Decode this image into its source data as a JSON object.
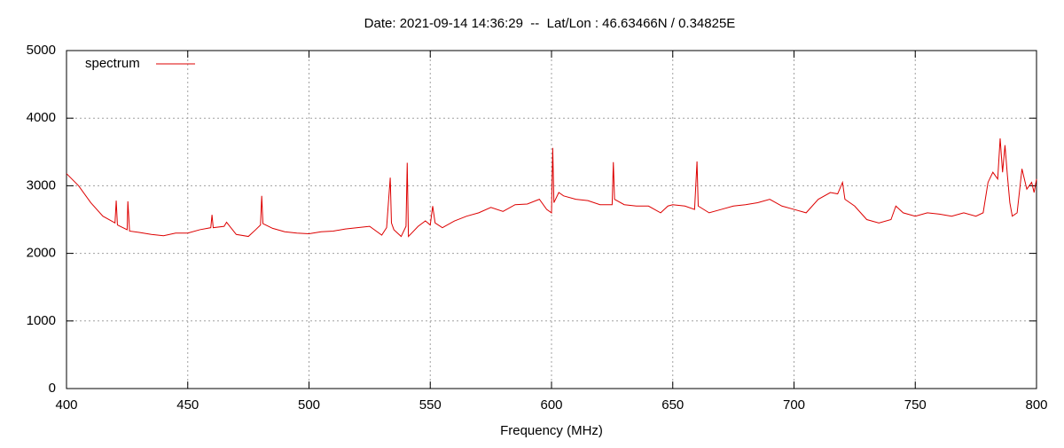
{
  "chart_data": {
    "type": "line",
    "title": "Date: 2021-09-14 14:36:29  --  Lat/Lon : 46.63466N / 0.34825E",
    "x_label": "Frequency (MHz)",
    "x": [
      400,
      405,
      410,
      415,
      420,
      420.5,
      421,
      425,
      425.3,
      426,
      430,
      435,
      440,
      445,
      450,
      455,
      459.5,
      460,
      460.5,
      465,
      466,
      470,
      475,
      478,
      480,
      480.5,
      481,
      485,
      490,
      495,
      500,
      505,
      510,
      515,
      520,
      525,
      530,
      532,
      533.5,
      534,
      535,
      538,
      540,
      540.5,
      541,
      545,
      548,
      550,
      551,
      552,
      555,
      560,
      565,
      570,
      575,
      580,
      585,
      590,
      595,
      598,
      600,
      600.5,
      601,
      603,
      605,
      610,
      615,
      620,
      625,
      625.5,
      626,
      630,
      635,
      640,
      645,
      648,
      650,
      655,
      659,
      660,
      660.5,
      665,
      670,
      675,
      680,
      685,
      690,
      695,
      700,
      705,
      710,
      715,
      718,
      720,
      721,
      725,
      730,
      735,
      740,
      742,
      745,
      750,
      755,
      760,
      765,
      770,
      775,
      778,
      780,
      782,
      784,
      785,
      786,
      787,
      788,
      789,
      790,
      792,
      794,
      796,
      798,
      799,
      800
    ],
    "series": [
      {
        "name": "spectrum",
        "color": "#dd0000",
        "values": [
          3180,
          3000,
          2750,
          2550,
          2450,
          2780,
          2420,
          2350,
          2770,
          2330,
          2310,
          2280,
          2260,
          2300,
          2300,
          2350,
          2380,
          2570,
          2380,
          2400,
          2460,
          2280,
          2250,
          2350,
          2420,
          2850,
          2440,
          2370,
          2320,
          2300,
          2290,
          2320,
          2330,
          2360,
          2380,
          2400,
          2270,
          2380,
          3120,
          2450,
          2350,
          2250,
          2400,
          3340,
          2250,
          2400,
          2480,
          2420,
          2700,
          2450,
          2380,
          2480,
          2550,
          2600,
          2680,
          2620,
          2720,
          2730,
          2800,
          2650,
          2600,
          3560,
          2750,
          2900,
          2850,
          2800,
          2780,
          2720,
          2720,
          3350,
          2800,
          2720,
          2700,
          2700,
          2600,
          2700,
          2720,
          2700,
          2650,
          3360,
          2700,
          2600,
          2650,
          2700,
          2720,
          2750,
          2800,
          2700,
          2650,
          2600,
          2800,
          2900,
          2880,
          3050,
          2800,
          2700,
          2500,
          2450,
          2500,
          2700,
          2600,
          2550,
          2600,
          2580,
          2550,
          2600,
          2550,
          2600,
          3050,
          3200,
          3100,
          3700,
          3200,
          3600,
          3150,
          2750,
          2550,
          2600,
          3250,
          2950,
          3050,
          2900,
          3100
        ]
      }
    ],
    "xlim": [
      400,
      800
    ],
    "xticks": [
      400,
      450,
      500,
      550,
      600,
      650,
      700,
      750,
      800
    ],
    "ylim": [
      0,
      5000
    ],
    "yticks": [
      0,
      1000,
      2000,
      3000,
      4000,
      5000
    ],
    "grid": true,
    "legend": "top-left"
  }
}
